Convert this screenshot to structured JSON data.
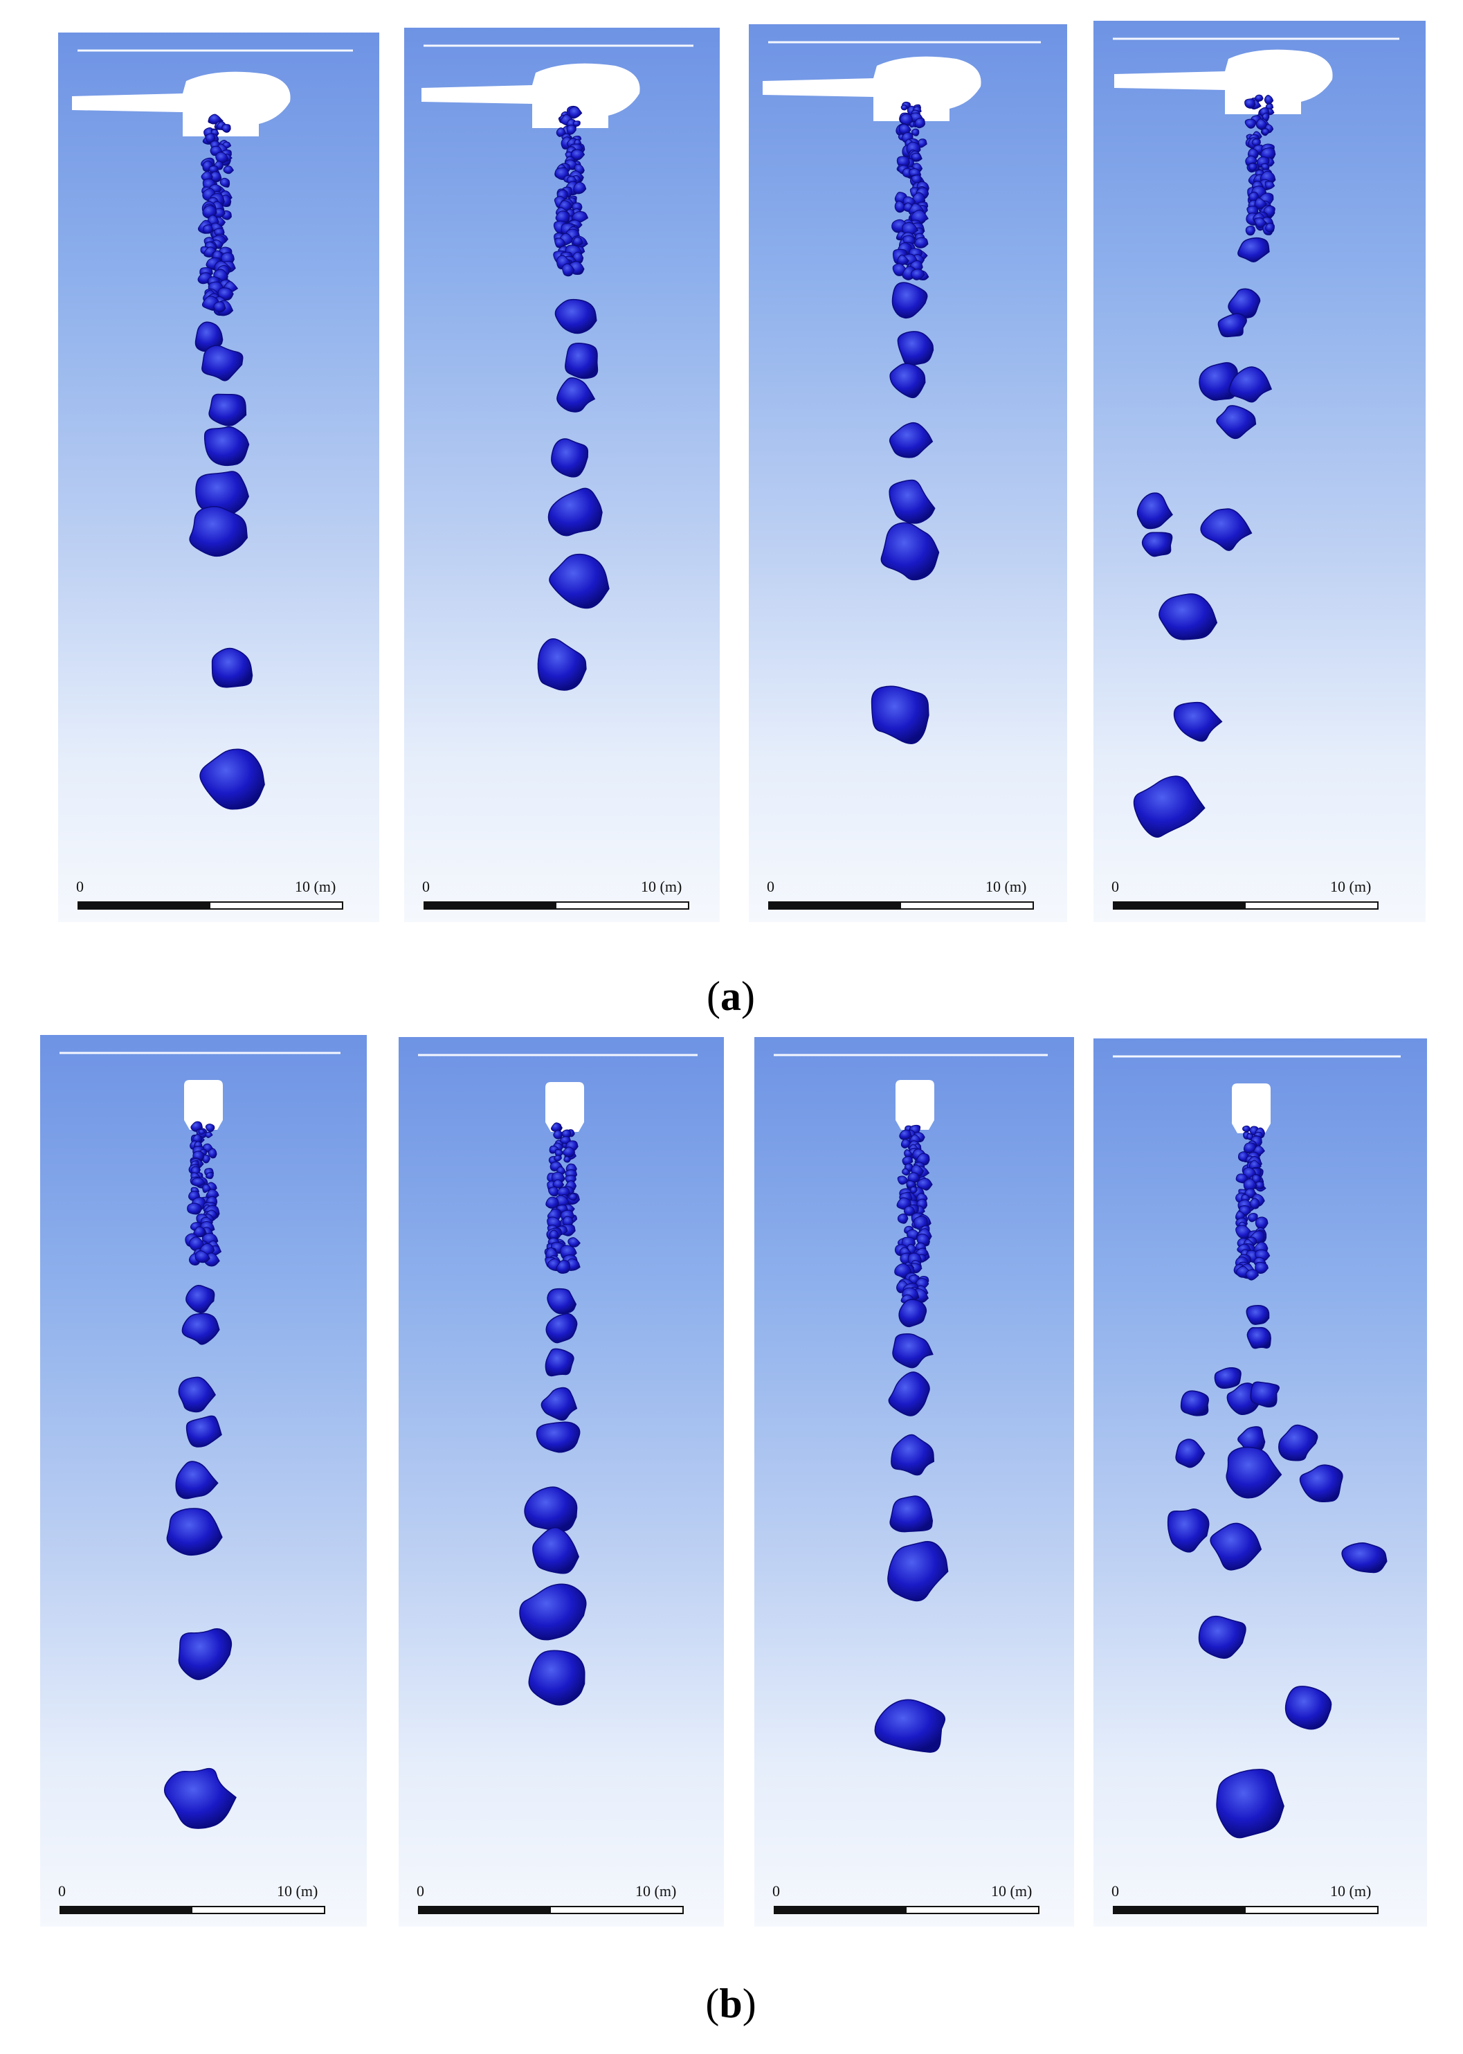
{
  "figure": {
    "caption_a": "a",
    "caption_b": "b"
  },
  "scale_bar": {
    "zero_label": "0",
    "end_label": "10 (m)"
  },
  "colors": {
    "background_top": "#6e93e4",
    "background_bottom": "#f5f8fd",
    "particle_fill": "#1a1ac6",
    "particle_dark": "#0a0a80",
    "particle_highlight": "#4f60f0",
    "nozzle_white": "#ffffff"
  },
  "rows": [
    {
      "label": "a",
      "nozzle_type": "wide-horizontal-head",
      "panels": [
        "panel-a1",
        "panel-a2",
        "panel-a3",
        "panel-a4"
      ]
    },
    {
      "label": "b",
      "nozzle_type": "compact-square-head",
      "panels": [
        "panel-b1",
        "panel-b2",
        "panel-b3",
        "panel-b4"
      ]
    }
  ]
}
